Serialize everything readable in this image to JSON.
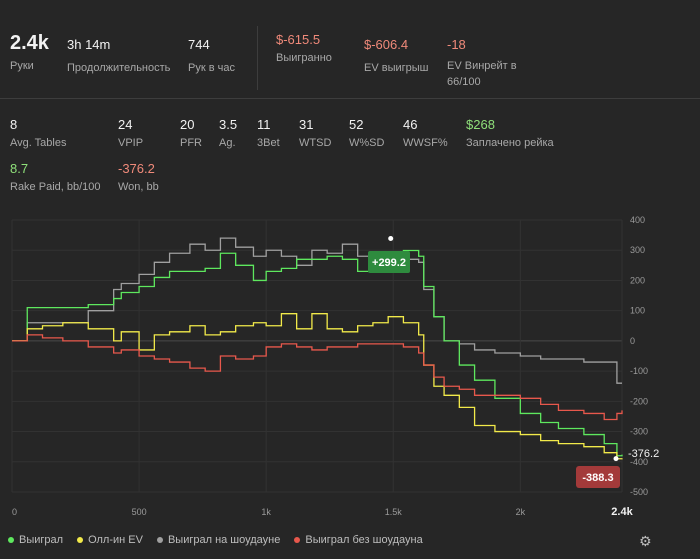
{
  "summary": {
    "hands": {
      "value": "2.4k",
      "label": "Руки"
    },
    "duration": {
      "value": "3h 14m",
      "label": "Продолжительность"
    },
    "hands_per_hour": {
      "value": "744",
      "label": "Рук в час"
    },
    "won": {
      "value": "$-615.5",
      "label": "Выигранно"
    },
    "ev_won": {
      "value": "$-606.4",
      "label": "EV выигрыш"
    },
    "ev_winrate": {
      "value": "-18",
      "label": "EV Винрейт в 66/100"
    }
  },
  "stats": [
    {
      "value": "8",
      "label": "Avg. Tables"
    },
    {
      "value": "24",
      "label": "VPIP"
    },
    {
      "value": "20",
      "label": "PFR"
    },
    {
      "value": "3.5",
      "label": "Ag."
    },
    {
      "value": "11",
      "label": "3Bet"
    },
    {
      "value": "31",
      "label": "WTSD"
    },
    {
      "value": "52",
      "label": "W%SD"
    },
    {
      "value": "46",
      "label": "WWSF%"
    },
    {
      "value": "$268",
      "label": "Заплачено рейка"
    },
    {
      "value": "8.7",
      "label": "Rake Paid, bb/100"
    },
    {
      "value": "-376.2",
      "label": "Won, bb"
    }
  ],
  "legend": [
    {
      "label": "Выиграл",
      "color": "#5ee85e"
    },
    {
      "label": "Олл-ин EV",
      "color": "#f2ea4a"
    },
    {
      "label": "Выиграл на шоудауне",
      "color": "#a0a0a0"
    },
    {
      "label": "Выиграл без шоудауна",
      "color": "#e8584c"
    }
  ],
  "chart_data": {
    "type": "line",
    "xlim": [
      0,
      2400
    ],
    "ylim": [
      -500,
      400
    ],
    "xticks": [
      "0",
      "500",
      "1k",
      "1.5k",
      "2k",
      "2.4k"
    ],
    "xtick_values": [
      0,
      500,
      1000,
      1500,
      2000,
      2400
    ],
    "yticks": [
      400,
      300,
      200,
      100,
      0,
      -100,
      -200,
      -300,
      -400,
      -500
    ],
    "annotations": [
      {
        "text": "+299.2",
        "x": 1490,
        "y": 299.2,
        "color": "#2e8b3e"
      },
      {
        "text": "-376.2",
        "x": 2400,
        "y": -376.2,
        "color": ""
      },
      {
        "text": "-388.3",
        "x": 2280,
        "y": -388.3,
        "color": "#a33a3a"
      }
    ],
    "series": [
      {
        "name": "Выиграл на шоудауне",
        "color": "#a0a0a0",
        "x": [
          0,
          60,
          120,
          200,
          300,
          400,
          430,
          500,
          560,
          620,
          700,
          760,
          820,
          880,
          950,
          1000,
          1060,
          1120,
          1180,
          1240,
          1300,
          1360,
          1420,
          1480,
          1540,
          1600,
          1620,
          1660,
          1700,
          1760,
          1820,
          1900,
          2000,
          2080,
          2150,
          2250,
          2330,
          2380,
          2400
        ],
        "y": [
          0,
          60,
          60,
          60,
          100,
          170,
          190,
          220,
          260,
          290,
          320,
          300,
          340,
          310,
          280,
          300,
          280,
          250,
          300,
          290,
          320,
          280,
          280,
          290,
          270,
          260,
          170,
          80,
          0,
          -10,
          -30,
          -40,
          -50,
          -60,
          -60,
          -70,
          -70,
          -140,
          -140
        ]
      },
      {
        "name": "Выиграл",
        "color": "#5ee85e",
        "x": [
          0,
          60,
          120,
          200,
          300,
          400,
          430,
          500,
          560,
          620,
          700,
          760,
          820,
          880,
          950,
          1000,
          1060,
          1120,
          1180,
          1240,
          1300,
          1360,
          1420,
          1480,
          1540,
          1600,
          1620,
          1660,
          1700,
          1760,
          1820,
          1900,
          2000,
          2080,
          2150,
          2250,
          2330,
          2380,
          2400
        ],
        "y": [
          0,
          110,
          110,
          110,
          120,
          140,
          160,
          180,
          210,
          230,
          230,
          240,
          290,
          250,
          200,
          230,
          240,
          270,
          270,
          280,
          270,
          230,
          250,
          270,
          299.2,
          280,
          180,
          80,
          0,
          -80,
          -130,
          -190,
          -240,
          -270,
          -290,
          -310,
          -340,
          -380,
          -376.2
        ]
      },
      {
        "name": "Олл-ин EV",
        "color": "#f2ea4a",
        "x": [
          0,
          60,
          120,
          200,
          300,
          400,
          430,
          500,
          560,
          620,
          700,
          760,
          820,
          880,
          950,
          1000,
          1060,
          1120,
          1180,
          1240,
          1300,
          1360,
          1420,
          1480,
          1540,
          1600,
          1620,
          1660,
          1700,
          1760,
          1820,
          1900,
          2000,
          2080,
          2150,
          2250,
          2330,
          2380,
          2400
        ],
        "y": [
          0,
          40,
          50,
          60,
          40,
          0,
          30,
          -30,
          20,
          30,
          50,
          20,
          30,
          50,
          60,
          50,
          90,
          40,
          90,
          40,
          30,
          50,
          60,
          80,
          60,
          20,
          -80,
          -150,
          -180,
          -220,
          -280,
          -300,
          -310,
          -330,
          -340,
          -350,
          -370,
          -390,
          -388.3
        ]
      },
      {
        "name": "Выиграл без шоудауна",
        "color": "#e8584c",
        "x": [
          0,
          60,
          120,
          200,
          300,
          400,
          430,
          500,
          560,
          620,
          700,
          760,
          820,
          880,
          950,
          1000,
          1060,
          1120,
          1180,
          1240,
          1300,
          1360,
          1420,
          1480,
          1540,
          1600,
          1620,
          1660,
          1700,
          1760,
          1820,
          1900,
          2000,
          2080,
          2150,
          2250,
          2330,
          2380,
          2400
        ],
        "y": [
          0,
          20,
          10,
          0,
          -20,
          -40,
          -30,
          -50,
          -60,
          -70,
          -90,
          -100,
          -50,
          -60,
          -50,
          -20,
          -10,
          -20,
          -30,
          -20,
          -20,
          -10,
          -10,
          -10,
          -20,
          -40,
          -80,
          -120,
          -150,
          -160,
          -180,
          -180,
          -190,
          -210,
          -230,
          -240,
          -260,
          -240,
          -230
        ]
      }
    ]
  }
}
